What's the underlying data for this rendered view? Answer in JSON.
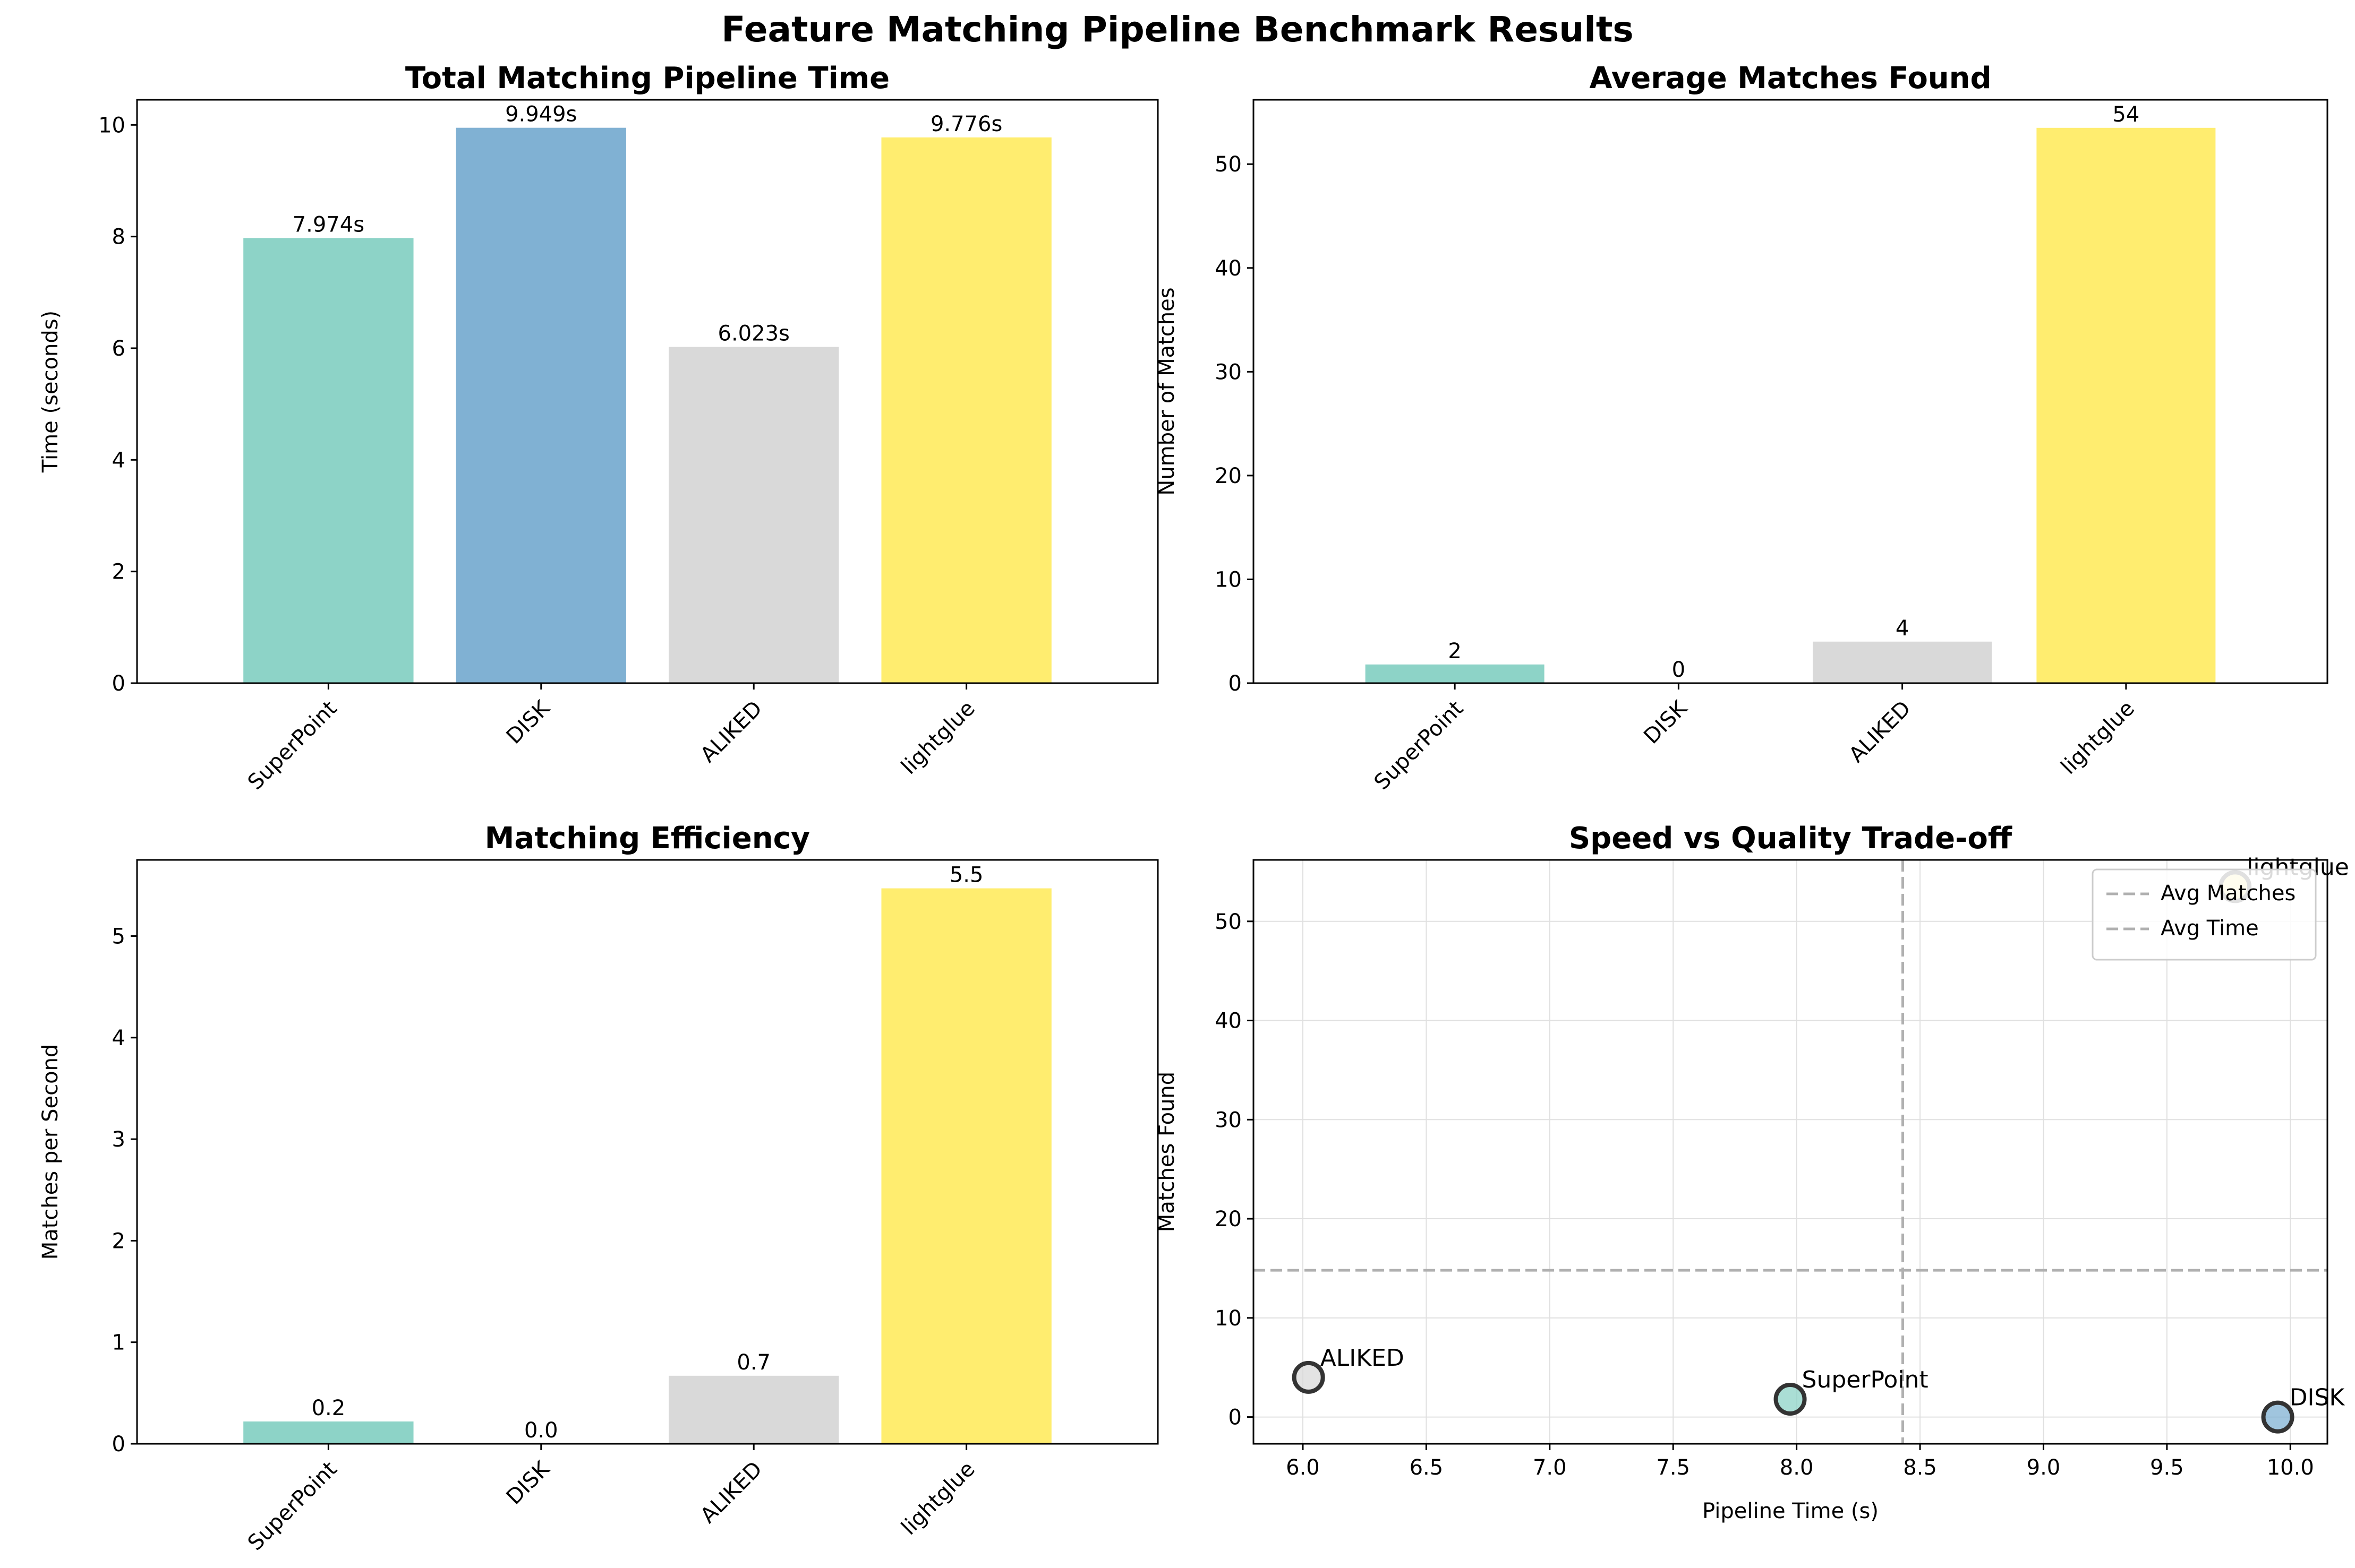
{
  "figure_title": "Feature Matching Pipeline Benchmark Results",
  "colors": {
    "SuperPoint": "#8dd3c7",
    "DISK": "#80b1d3",
    "ALIKED": "#d9d9d9",
    "lightglue": "#ffed6f",
    "scatter_edge": "#333333",
    "ref_line": "#b0b0b0",
    "grid": "#e0e0e0"
  },
  "chart_data": [
    {
      "type": "bar",
      "title": "Total Matching Pipeline Time",
      "xlabel": "",
      "ylabel": "Time (seconds)",
      "categories": [
        "SuperPoint",
        "DISK",
        "ALIKED",
        "lightglue"
      ],
      "values": [
        7.974,
        9.949,
        6.023,
        9.776
      ],
      "data_labels": [
        "7.974s",
        "9.949s",
        "6.023s",
        "9.776s"
      ],
      "ylim": [
        0,
        10.45
      ],
      "yticks": [
        0,
        2,
        4,
        6,
        8,
        10
      ],
      "grid": false
    },
    {
      "type": "bar",
      "title": "Average Matches Found",
      "xlabel": "",
      "ylabel": "Number of Matches",
      "categories": [
        "SuperPoint",
        "DISK",
        "ALIKED",
        "lightglue"
      ],
      "values": [
        1.8,
        0,
        4.0,
        53.5
      ],
      "data_labels": [
        "2",
        "0",
        "4",
        "54"
      ],
      "ylim": [
        0,
        56.2
      ],
      "yticks": [
        0,
        10,
        20,
        30,
        40,
        50
      ],
      "grid": false
    },
    {
      "type": "bar",
      "title": "Matching Efficiency",
      "xlabel": "",
      "ylabel": "Matches per Second",
      "categories": [
        "SuperPoint",
        "DISK",
        "ALIKED",
        "lightglue"
      ],
      "values": [
        0.22,
        0.0,
        0.67,
        5.47
      ],
      "data_labels": [
        "0.2",
        "0.0",
        "0.7",
        "5.5"
      ],
      "ylim": [
        0,
        5.75
      ],
      "yticks": [
        0,
        1,
        2,
        3,
        4,
        5
      ],
      "grid": false
    },
    {
      "type": "scatter",
      "title": "Speed vs Quality Trade-off",
      "xlabel": "Pipeline Time (s)",
      "ylabel": "Matches Found",
      "points": [
        {
          "label": "SuperPoint",
          "x": 7.974,
          "y": 1.8
        },
        {
          "label": "DISK",
          "x": 9.949,
          "y": 0.0
        },
        {
          "label": "ALIKED",
          "x": 6.023,
          "y": 4.0
        },
        {
          "label": "lightglue",
          "x": 9.776,
          "y": 53.5
        }
      ],
      "ref_lines": [
        {
          "label": "Avg Matches",
          "orientation": "horizontal",
          "value": 14.8
        },
        {
          "label": "Avg Time",
          "orientation": "vertical",
          "value": 8.43
        }
      ],
      "xlim": [
        5.8,
        10.15
      ],
      "ylim": [
        -2.7,
        56.2
      ],
      "xticks": [
        6.0,
        6.5,
        7.0,
        7.5,
        8.0,
        8.5,
        9.0,
        9.5,
        10.0
      ],
      "xtick_labels": [
        "6.0",
        "6.5",
        "7.0",
        "7.5",
        "8.0",
        "8.5",
        "9.0",
        "9.5",
        "10.0"
      ],
      "yticks": [
        0,
        10,
        20,
        30,
        40,
        50
      ],
      "grid": true,
      "legend_position": "top-right"
    }
  ]
}
